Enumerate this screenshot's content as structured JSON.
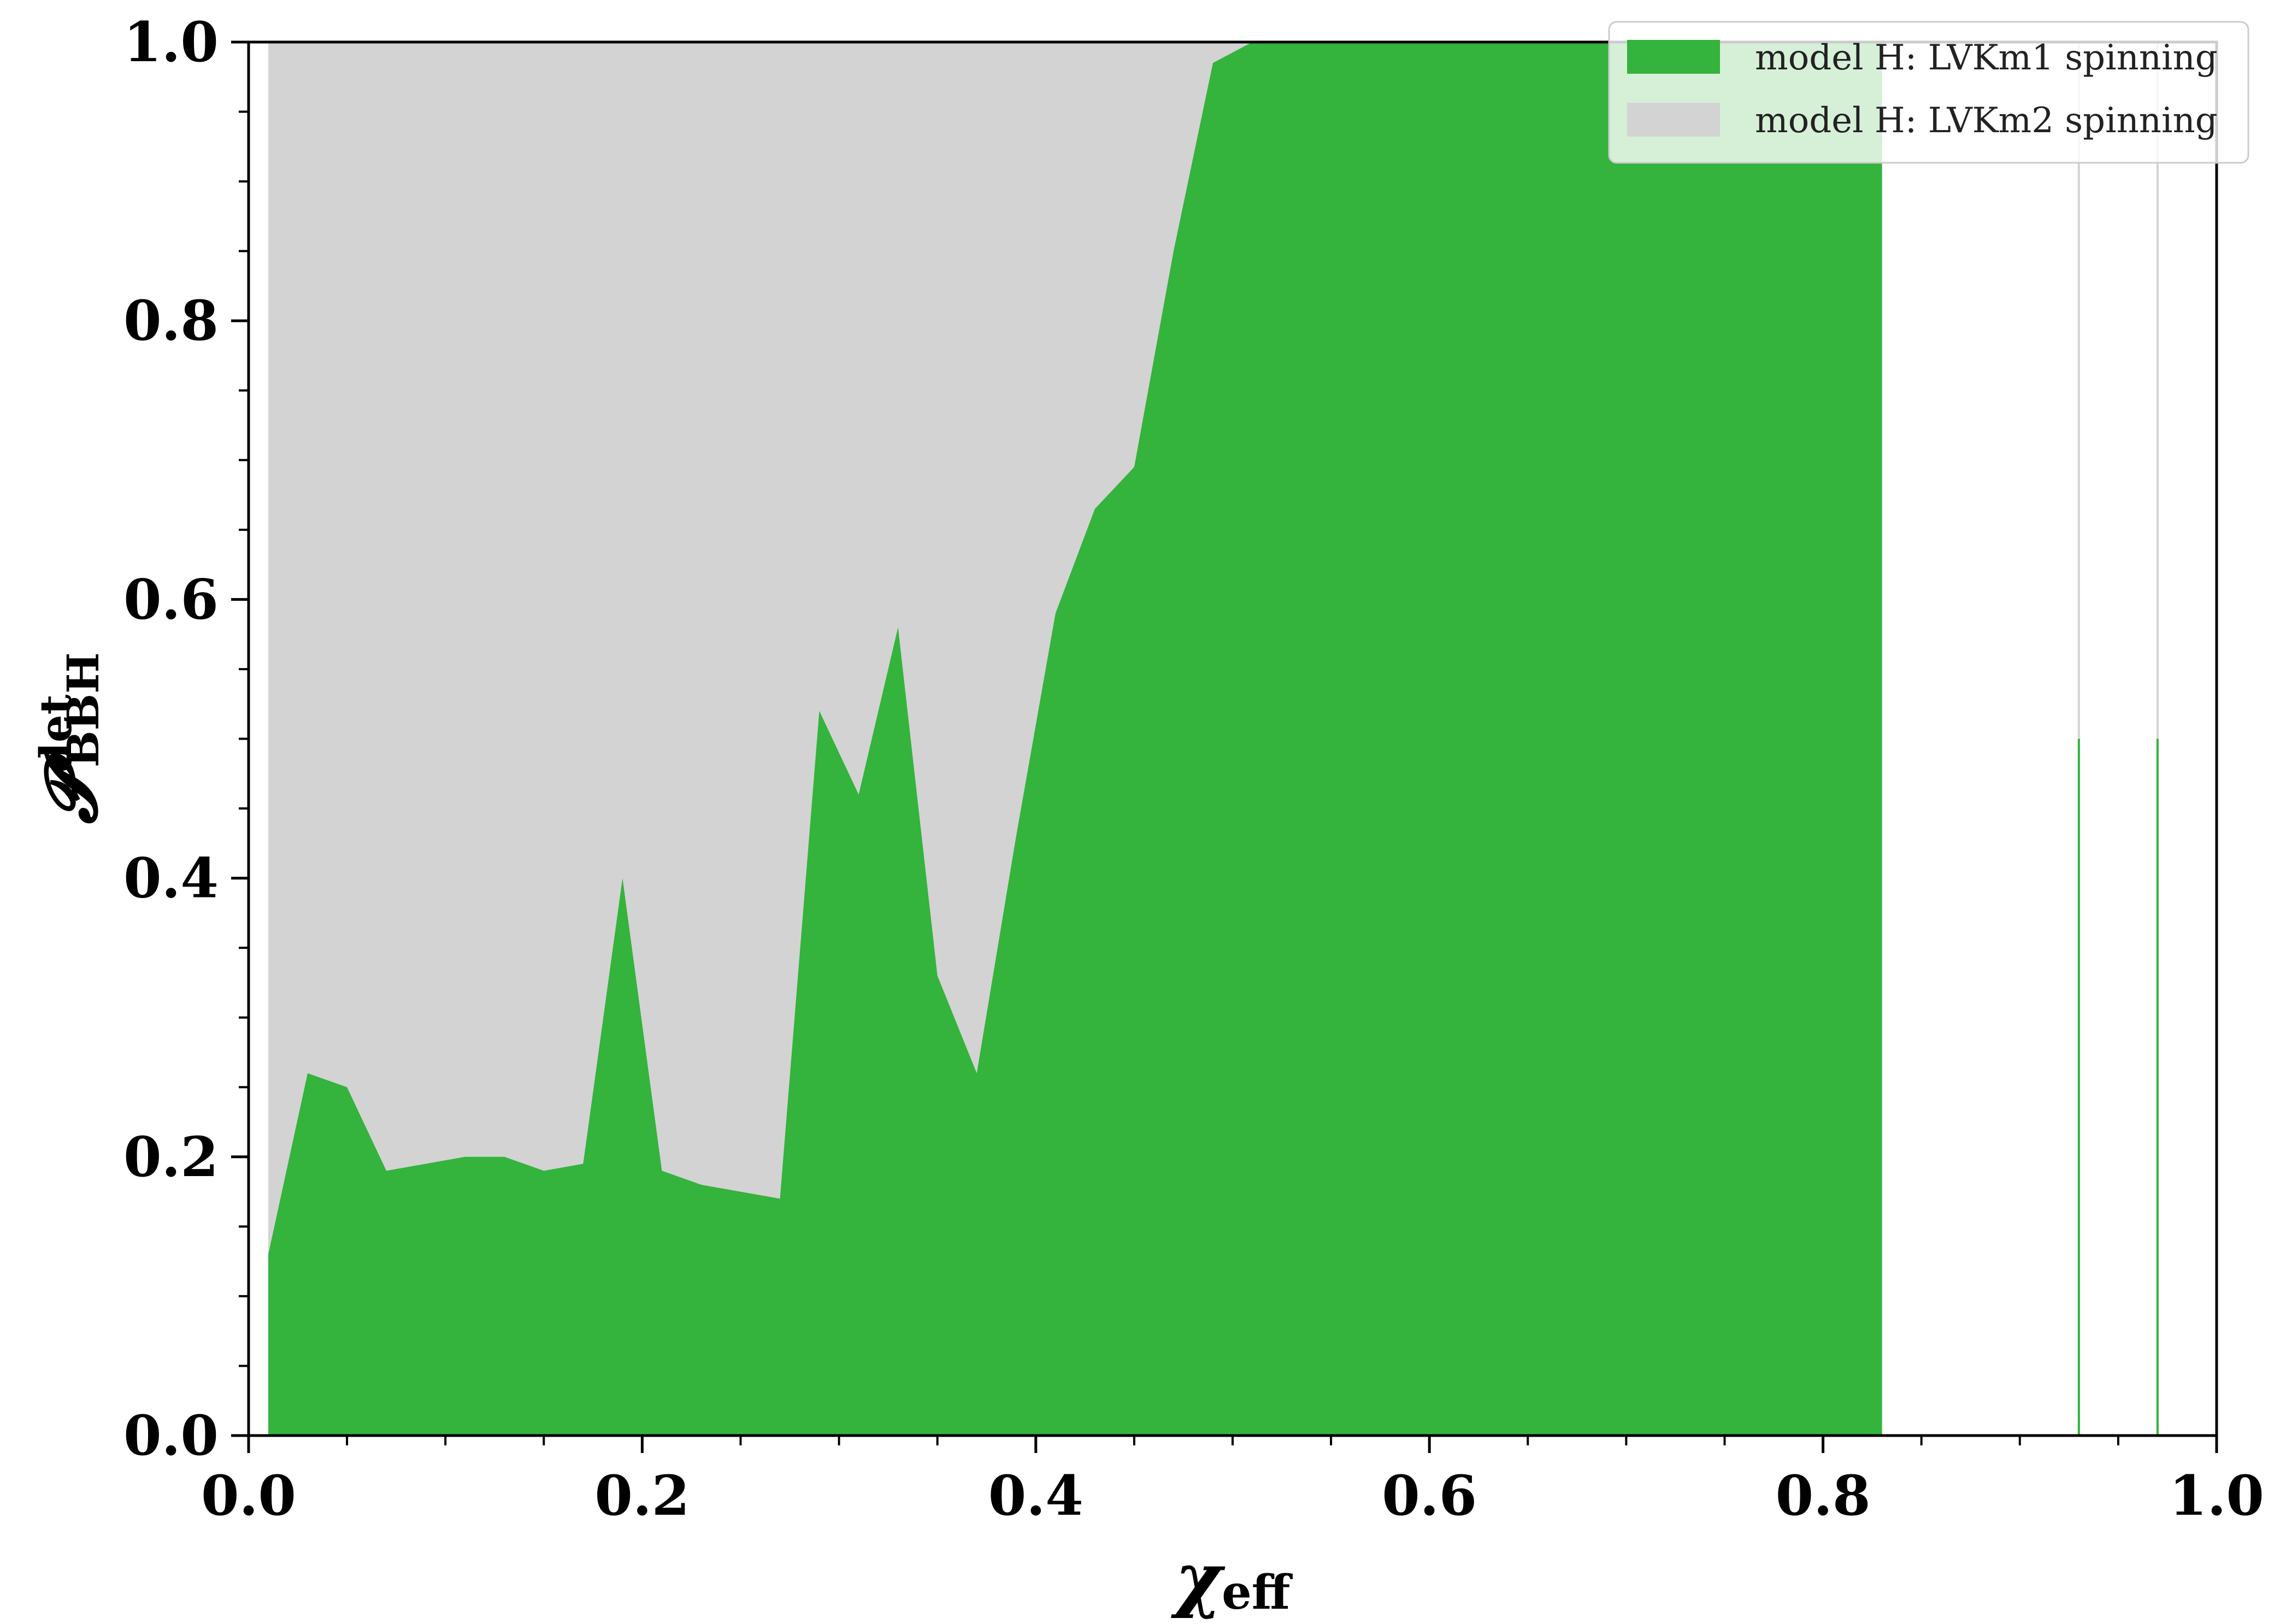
{
  "chart_data": {
    "type": "area",
    "xlabel": "χ",
    "xlabel_sub": "eff",
    "ylabel": "𝓟",
    "ylabel_sup": "det",
    "ylabel_sub": "BBH",
    "xlim": [
      0.0,
      1.0
    ],
    "ylim": [
      0.0,
      1.0
    ],
    "xticks": [
      0.0,
      0.2,
      0.4,
      0.6,
      0.8,
      1.0
    ],
    "yticks": [
      0.0,
      0.2,
      0.4,
      0.6,
      0.8,
      1.0
    ],
    "xtick_labels": [
      "0.0",
      "0.2",
      "0.4",
      "0.6",
      "0.8",
      "1.0"
    ],
    "ytick_labels": [
      "0.0",
      "0.2",
      "0.4",
      "0.6",
      "0.8",
      "1.0"
    ],
    "grid": false,
    "legend_position": "top-right",
    "series": [
      {
        "name": "model H: LVKm1 spinning",
        "color": "#34b33d",
        "x": [
          0.01,
          0.03,
          0.05,
          0.07,
          0.09,
          0.11,
          0.13,
          0.15,
          0.17,
          0.19,
          0.21,
          0.23,
          0.25,
          0.27,
          0.29,
          0.31,
          0.33,
          0.35,
          0.37,
          0.39,
          0.41,
          0.43,
          0.45,
          0.47,
          0.49,
          0.51,
          0.53,
          0.55,
          0.57,
          0.59,
          0.61,
          0.63,
          0.65,
          0.67,
          0.69,
          0.71,
          0.73,
          0.75,
          0.77,
          0.79,
          0.81,
          0.83
        ],
        "y": [
          0.13,
          0.26,
          0.25,
          0.19,
          0.195,
          0.2,
          0.2,
          0.19,
          0.195,
          0.4,
          0.19,
          0.18,
          0.175,
          0.17,
          0.52,
          0.46,
          0.58,
          0.33,
          0.26,
          0.43,
          0.59,
          0.665,
          0.695,
          0.85,
          0.985,
          1.0,
          1.0,
          1.0,
          1.0,
          1.0,
          1.0,
          1.0,
          1.0,
          1.0,
          1.0,
          1.0,
          1.0,
          1.0,
          1.0,
          1.0,
          1.0,
          1.0
        ],
        "spikes": [
          {
            "x": 0.93,
            "y": 0.5
          },
          {
            "x": 0.97,
            "y": 0.5
          }
        ]
      },
      {
        "name": "model H: LVKm2 spinning",
        "color": "#d3d3d3",
        "x": [
          0.01,
          0.03,
          0.05,
          0.07,
          0.09,
          0.11,
          0.13,
          0.15,
          0.17,
          0.19,
          0.21,
          0.23,
          0.25,
          0.27,
          0.29,
          0.31,
          0.33,
          0.35,
          0.37,
          0.39,
          0.41,
          0.43,
          0.45,
          0.47,
          0.49,
          0.51,
          0.53
        ],
        "y": [
          1.0,
          1.0,
          1.0,
          1.0,
          1.0,
          1.0,
          1.0,
          1.0,
          1.0,
          1.0,
          1.0,
          1.0,
          1.0,
          1.0,
          1.0,
          1.0,
          1.0,
          1.0,
          1.0,
          1.0,
          1.0,
          1.0,
          1.0,
          1.0,
          1.0,
          1.0,
          1.0
        ],
        "spikes": [
          {
            "x": 0.93,
            "y": 1.0
          },
          {
            "x": 0.97,
            "y": 1.0
          }
        ]
      }
    ]
  }
}
